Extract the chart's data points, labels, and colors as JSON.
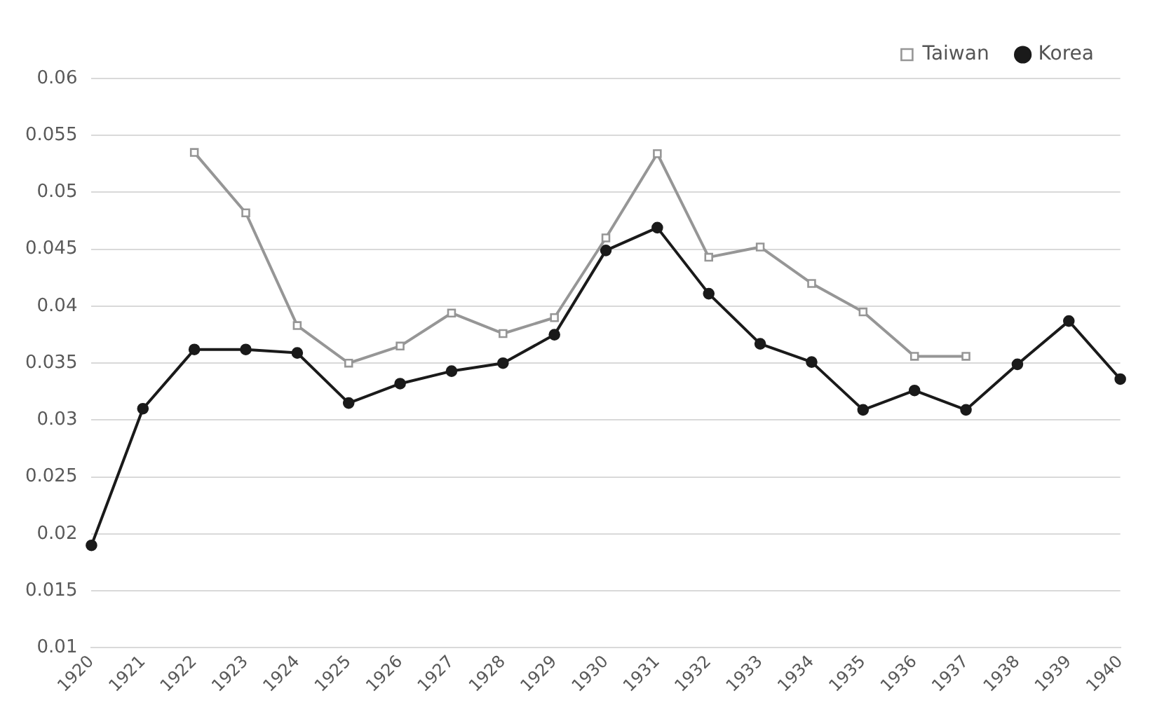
{
  "chart_data": {
    "type": "line",
    "categories": [
      "1920",
      "1921",
      "1922",
      "1923",
      "1924",
      "1925",
      "1926",
      "1927",
      "1928",
      "1929",
      "1930",
      "1931",
      "1932",
      "1933",
      "1934",
      "1935",
      "1936",
      "1937",
      "1938",
      "1939",
      "1940"
    ],
    "series": [
      {
        "name": "Taiwan",
        "color": "#969696",
        "marker": "square",
        "values": [
          null,
          null,
          0.0535,
          0.0482,
          0.0383,
          0.035,
          0.0365,
          0.0394,
          0.0376,
          0.039,
          0.046,
          0.0534,
          0.0443,
          0.0452,
          0.042,
          0.0395,
          0.0356,
          0.0356,
          null,
          null,
          null
        ]
      },
      {
        "name": "Korea",
        "color": "#1a1a1a",
        "marker": "circle",
        "values": [
          0.019,
          0.031,
          0.0362,
          0.0362,
          0.0359,
          0.0315,
          0.0332,
          0.0343,
          0.035,
          0.0375,
          0.0449,
          0.0469,
          0.0411,
          0.0367,
          0.0351,
          0.0309,
          0.0326,
          0.0309,
          0.0349,
          0.0387,
          0.0336
        ]
      }
    ],
    "ylim": [
      0.01,
      0.06
    ],
    "yticks": [
      0.01,
      0.015,
      0.02,
      0.025,
      0.03,
      0.035,
      0.04,
      0.045,
      0.05,
      0.055,
      0.06
    ],
    "grid": "y",
    "legend": "top right",
    "line_style": "solid"
  }
}
